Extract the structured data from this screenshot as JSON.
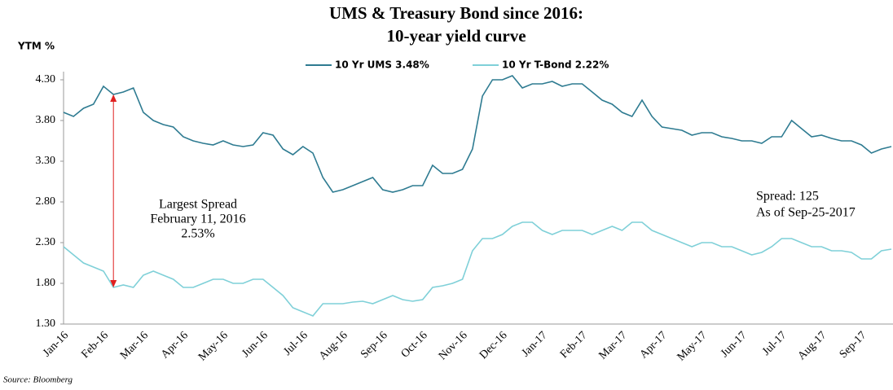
{
  "chart_data": {
    "type": "line",
    "title": [
      "UMS & Treasury Bond since 2016:",
      "10-year yield curve"
    ],
    "y_label": "YTM %",
    "source": "Source: Bloomberg",
    "categories": [
      "Jan-16",
      null,
      null,
      null,
      "Feb-16",
      null,
      null,
      null,
      "Mar-16",
      null,
      null,
      null,
      "Apr-16",
      null,
      null,
      null,
      "May-16",
      null,
      null,
      null,
      "Jun-16",
      null,
      null,
      null,
      "Jul-16",
      null,
      null,
      null,
      "Aug-16",
      null,
      null,
      null,
      "Sep-16",
      null,
      null,
      null,
      "Oct-16",
      null,
      null,
      null,
      "Nov-16",
      null,
      null,
      null,
      "Dec-16",
      null,
      null,
      null,
      "Jan-17",
      null,
      null,
      null,
      "Feb-17",
      null,
      null,
      null,
      "Mar-17",
      null,
      null,
      null,
      "Apr-17",
      null,
      null,
      null,
      "May-17",
      null,
      null,
      null,
      "Jun-17",
      null,
      null,
      null,
      "Jul-17",
      null,
      null,
      null,
      "Aug-17",
      null,
      null,
      null,
      "Sep-17",
      null,
      null,
      null
    ],
    "series": [
      {
        "name": "10 Yr UMS 3.48%",
        "color": "#2e7b91",
        "values": [
          3.9,
          3.85,
          3.95,
          4.0,
          4.22,
          4.12,
          4.15,
          4.2,
          3.9,
          3.8,
          3.75,
          3.72,
          3.6,
          3.55,
          3.52,
          3.5,
          3.55,
          3.5,
          3.48,
          3.5,
          3.65,
          3.62,
          3.45,
          3.38,
          3.48,
          3.4,
          3.1,
          2.92,
          2.95,
          3.0,
          3.05,
          3.1,
          2.95,
          2.92,
          2.95,
          3.0,
          3.0,
          3.25,
          3.15,
          3.15,
          3.2,
          3.45,
          4.1,
          4.3,
          4.3,
          4.35,
          4.2,
          4.25,
          4.25,
          4.28,
          4.22,
          4.25,
          4.25,
          4.15,
          4.05,
          4.0,
          3.9,
          3.85,
          4.05,
          3.85,
          3.72,
          3.7,
          3.68,
          3.62,
          3.65,
          3.65,
          3.6,
          3.58,
          3.55,
          3.55,
          3.52,
          3.6,
          3.6,
          3.8,
          3.7,
          3.6,
          3.62,
          3.58,
          3.55,
          3.55,
          3.5,
          3.4,
          3.45,
          3.48
        ]
      },
      {
        "name": "10 Yr T-Bond 2.22%",
        "color": "#7fd0d8",
        "values": [
          2.25,
          2.15,
          2.05,
          2.0,
          1.95,
          1.75,
          1.78,
          1.75,
          1.9,
          1.95,
          1.9,
          1.85,
          1.75,
          1.75,
          1.8,
          1.85,
          1.85,
          1.8,
          1.8,
          1.85,
          1.85,
          1.75,
          1.65,
          1.5,
          1.45,
          1.4,
          1.55,
          1.55,
          1.55,
          1.57,
          1.58,
          1.55,
          1.6,
          1.65,
          1.6,
          1.58,
          1.6,
          1.75,
          1.77,
          1.8,
          1.85,
          2.2,
          2.35,
          2.35,
          2.4,
          2.5,
          2.55,
          2.55,
          2.45,
          2.4,
          2.45,
          2.45,
          2.45,
          2.4,
          2.45,
          2.5,
          2.45,
          2.55,
          2.55,
          2.45,
          2.4,
          2.35,
          2.3,
          2.25,
          2.3,
          2.3,
          2.25,
          2.25,
          2.2,
          2.15,
          2.18,
          2.25,
          2.35,
          2.35,
          2.3,
          2.25,
          2.25,
          2.2,
          2.2,
          2.18,
          2.1,
          2.1,
          2.2,
          2.22
        ]
      }
    ],
    "ylim": [
      1.3,
      4.4
    ],
    "yticks": [
      {
        "value": 1.3,
        "label": "1.30"
      },
      {
        "value": 1.8,
        "label": "1.80"
      },
      {
        "value": 2.3,
        "label": "2.30"
      },
      {
        "value": 2.8,
        "label": "2.80"
      },
      {
        "value": 3.3,
        "label": "3.30"
      },
      {
        "value": 3.8,
        "label": "3.80"
      },
      {
        "value": 4.3,
        "label": "4.30"
      }
    ],
    "grid": false,
    "legend": "top",
    "annotations": [
      {
        "lines": [
          "Largest Spread",
          "February 11, 2016",
          "2.53%"
        ],
        "at": 5,
        "arrow_color": "#e02020"
      },
      {
        "lines": [
          "Spread:  125",
          "As of Sep-25-2017"
        ]
      }
    ]
  }
}
